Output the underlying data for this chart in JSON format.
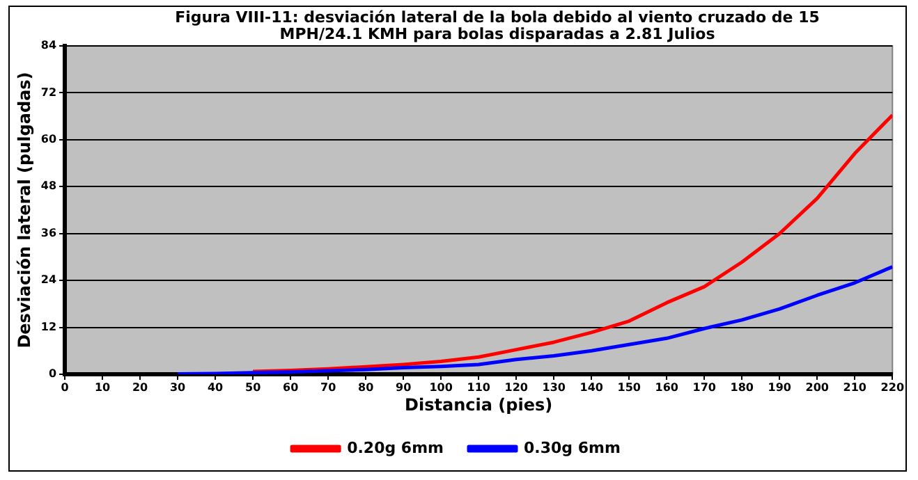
{
  "chart_data": {
    "type": "line",
    "title": "Figura VIII-11: desviación lateral de la bola debido al viento cruzado de 15 MPH/24.1 KMH para bolas disparadas a 2.81 Julios",
    "xlabel": "Distancia (pies)",
    "ylabel": "Desviación lateral (pulgadas)",
    "x": [
      30,
      40,
      50,
      60,
      70,
      80,
      90,
      100,
      110,
      120,
      130,
      140,
      150,
      160,
      170,
      180,
      190,
      200,
      210,
      220
    ],
    "series": [
      {
        "name": "0.20g 6mm",
        "color": "#ff0000",
        "values": [
          null,
          null,
          0.7,
          1,
          1.4,
          1.9,
          2.5,
          3.3,
          4.4,
          6.3,
          8.2,
          10.7,
          13.6,
          18.3,
          22.4,
          28.7,
          36,
          45,
          56.5,
          66.3
        ]
      },
      {
        "name": "0.30g 6mm",
        "color": "#0000ff",
        "values": [
          0.1,
          0.2,
          0.4,
          0.6,
          0.9,
          1.2,
          1.7,
          2,
          2.5,
          3.8,
          4.7,
          6,
          7.6,
          9.2,
          11.7,
          13.9,
          16.7,
          20.2,
          23.4,
          27.5
        ]
      }
    ],
    "xlim": [
      0,
      220
    ],
    "xticks": [
      0,
      10,
      20,
      30,
      40,
      50,
      60,
      70,
      80,
      90,
      100,
      110,
      120,
      130,
      140,
      150,
      160,
      170,
      180,
      190,
      200,
      210,
      220
    ],
    "ylim": [
      0,
      84
    ],
    "yticks": [
      0,
      12,
      24,
      36,
      48,
      60,
      72,
      84
    ],
    "grid": "y",
    "legend": "bottom",
    "marker": "none",
    "line_style": "solid"
  }
}
